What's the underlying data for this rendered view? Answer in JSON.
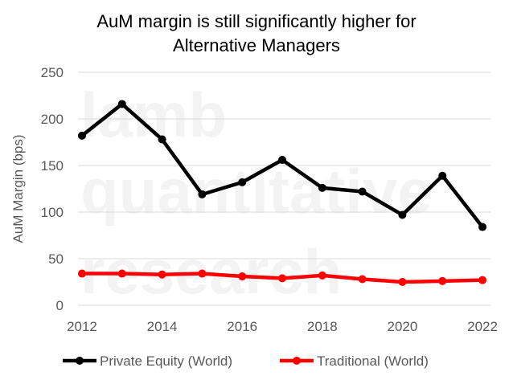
{
  "chart_data": {
    "type": "line",
    "title_lines": [
      "AuM margin is still significantly higher for",
      "Alternative Managers"
    ],
    "ylabel": "AuM Margin (bps)",
    "xlabel": "",
    "ylim": [
      0,
      250
    ],
    "yticks": [
      0,
      50,
      100,
      150,
      200,
      250
    ],
    "xticks": [
      2012,
      2014,
      2016,
      2018,
      2020,
      2022
    ],
    "x": [
      2012,
      2013,
      2014,
      2015,
      2016,
      2017,
      2018,
      2019,
      2020,
      2021,
      2022
    ],
    "grid": true,
    "legend_position": "bottom",
    "watermark_lines": [
      "lamb",
      "quantitative",
      "research"
    ],
    "series": [
      {
        "name": "Private Equity (World)",
        "color": "#000000",
        "values": [
          182,
          216,
          178,
          119,
          132,
          156,
          126,
          122,
          97,
          139,
          84
        ]
      },
      {
        "name": "Traditional (World)",
        "color": "#ff0000",
        "values": [
          34,
          34,
          33,
          34,
          31,
          29,
          32,
          28,
          25,
          26,
          27
        ]
      }
    ]
  }
}
